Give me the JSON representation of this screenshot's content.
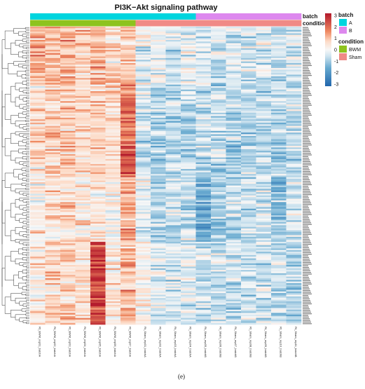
{
  "figure_label": "(e)",
  "chart_data": {
    "type": "heatmap",
    "title": "PI3K−Akt signaling pathway",
    "columns": [
      "Rt_BWM_rep01_batchA",
      "Rt_BWM_rep02_batchA",
      "Rt_BWM_rep03_batchA",
      "Rt_BWM_rep04_batchA",
      "Rt_BWM_rep05_batchA",
      "Rt_BWM_rep06_batchA",
      "Rt_BWM_rep07_batchA",
      "Rt_Sham_rep01_batchA",
      "Rt_Sham_rep02_batchA",
      "Rt_Sham_rep03_batchA",
      "Rt_Sham_rep04_batchA",
      "Rt_Sham_rep05_batchB",
      "Rt_Sham_rep06_batchB",
      "Rt_Sham_rep07_batchB",
      "Rt_Sham_rep08_batchB",
      "Rt_Sham_rep09_batchB",
      "Rt_Sham_rep10_batchB",
      "Rt_Sham_rep11_batchB"
    ],
    "row_count": 180,
    "annotation_rows": [
      {
        "name": "batch",
        "values": [
          "A",
          "A",
          "A",
          "A",
          "A",
          "A",
          "A",
          "A",
          "A",
          "A",
          "A",
          "B",
          "B",
          "B",
          "B",
          "B",
          "B",
          "B"
        ]
      },
      {
        "name": "condition",
        "values": [
          "BWM",
          "BWM",
          "BWM",
          "BWM",
          "BWM",
          "BWM",
          "BWM",
          "Sham",
          "Sham",
          "Sham",
          "Sham",
          "Sham",
          "Sham",
          "Sham",
          "Sham",
          "Sham",
          "Sham",
          "Sham"
        ]
      }
    ],
    "color_scale": {
      "min": -3,
      "max": 3,
      "ticks": [
        "3",
        "2",
        "1",
        "0",
        "-1",
        "-2",
        "-3"
      ],
      "stops": [
        {
          "value": -3,
          "color": "#2166ac"
        },
        {
          "value": -1.5,
          "color": "#67a9cf"
        },
        {
          "value": -0.5,
          "color": "#d1e5f0"
        },
        {
          "value": 0,
          "color": "#f7f7f7"
        },
        {
          "value": 0.7,
          "color": "#fddbc7"
        },
        {
          "value": 1.5,
          "color": "#ef8a62"
        },
        {
          "value": 3,
          "color": "#b2182b"
        }
      ]
    },
    "legends": [
      {
        "title": "batch",
        "items": [
          {
            "label": "A",
            "color": "#00d5de"
          },
          {
            "label": "B",
            "color": "#dd88ee"
          }
        ]
      },
      {
        "title": "condition",
        "items": [
          {
            "label": "BWM",
            "color": "#8ec31e"
          },
          {
            "label": "Sham",
            "color": "#f08a86"
          }
        ]
      }
    ],
    "row_dendrogram": true,
    "column_clustering": false,
    "grid": false
  }
}
